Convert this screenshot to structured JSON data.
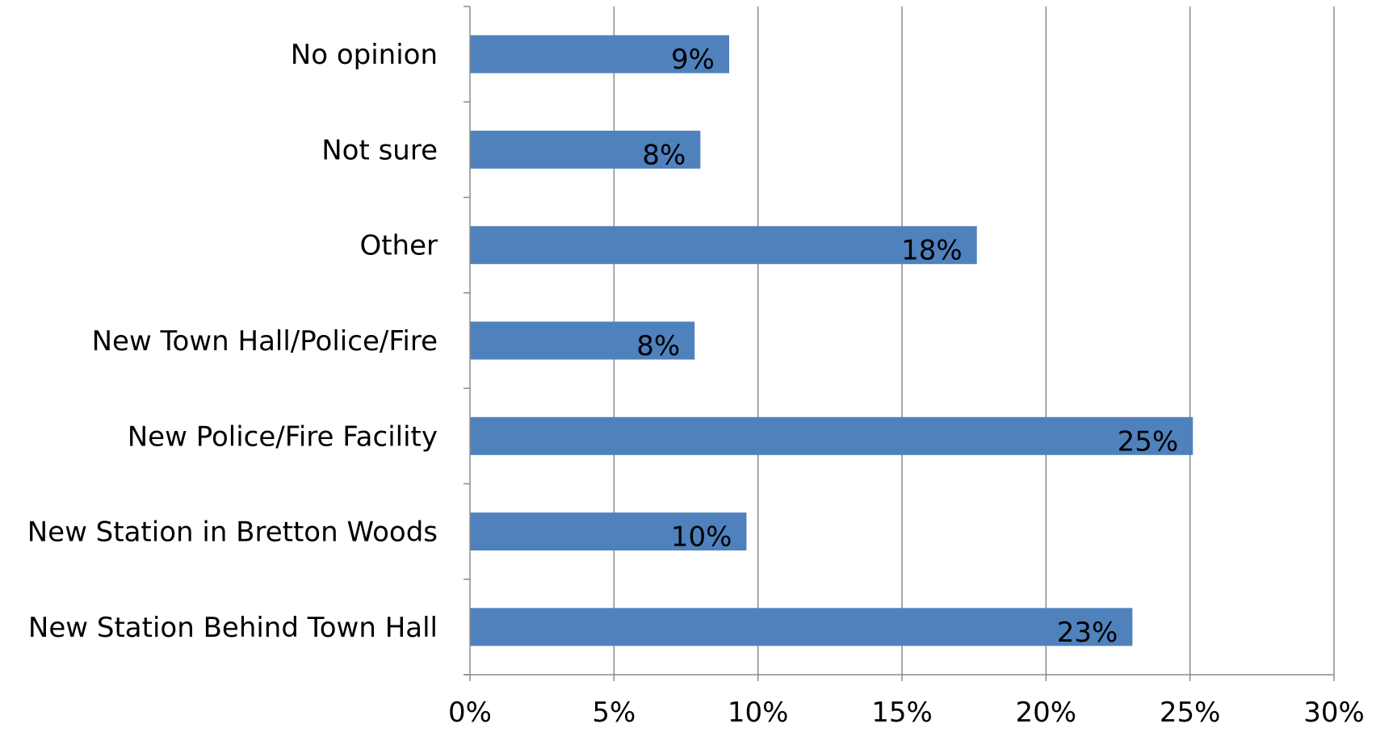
{
  "chart_data": {
    "type": "bar",
    "orientation": "horizontal",
    "categories": [
      "No opinion",
      "Not sure",
      "Other",
      "New Town Hall/Police/Fire",
      "New Police/Fire Facility",
      "New Station in Bretton Woods",
      "New Station Behind Town Hall"
    ],
    "values": [
      9,
      8,
      17.6,
      7.8,
      25.1,
      9.6,
      23
    ],
    "data_labels": [
      "9%",
      "8%",
      "18%",
      "8%",
      "25%",
      "10%",
      "23%"
    ],
    "xlim": [
      0,
      30
    ],
    "x_ticks": [
      0,
      5,
      10,
      15,
      20,
      25,
      30
    ],
    "x_tick_labels": [
      "0%",
      "5%",
      "10%",
      "15%",
      "20%",
      "25%",
      "30%"
    ],
    "title": "",
    "xlabel": "",
    "ylabel": "",
    "grid": "vertical",
    "legend": "none",
    "bar_color": "#4f81bd",
    "grid_color": "#8c8c8c"
  }
}
